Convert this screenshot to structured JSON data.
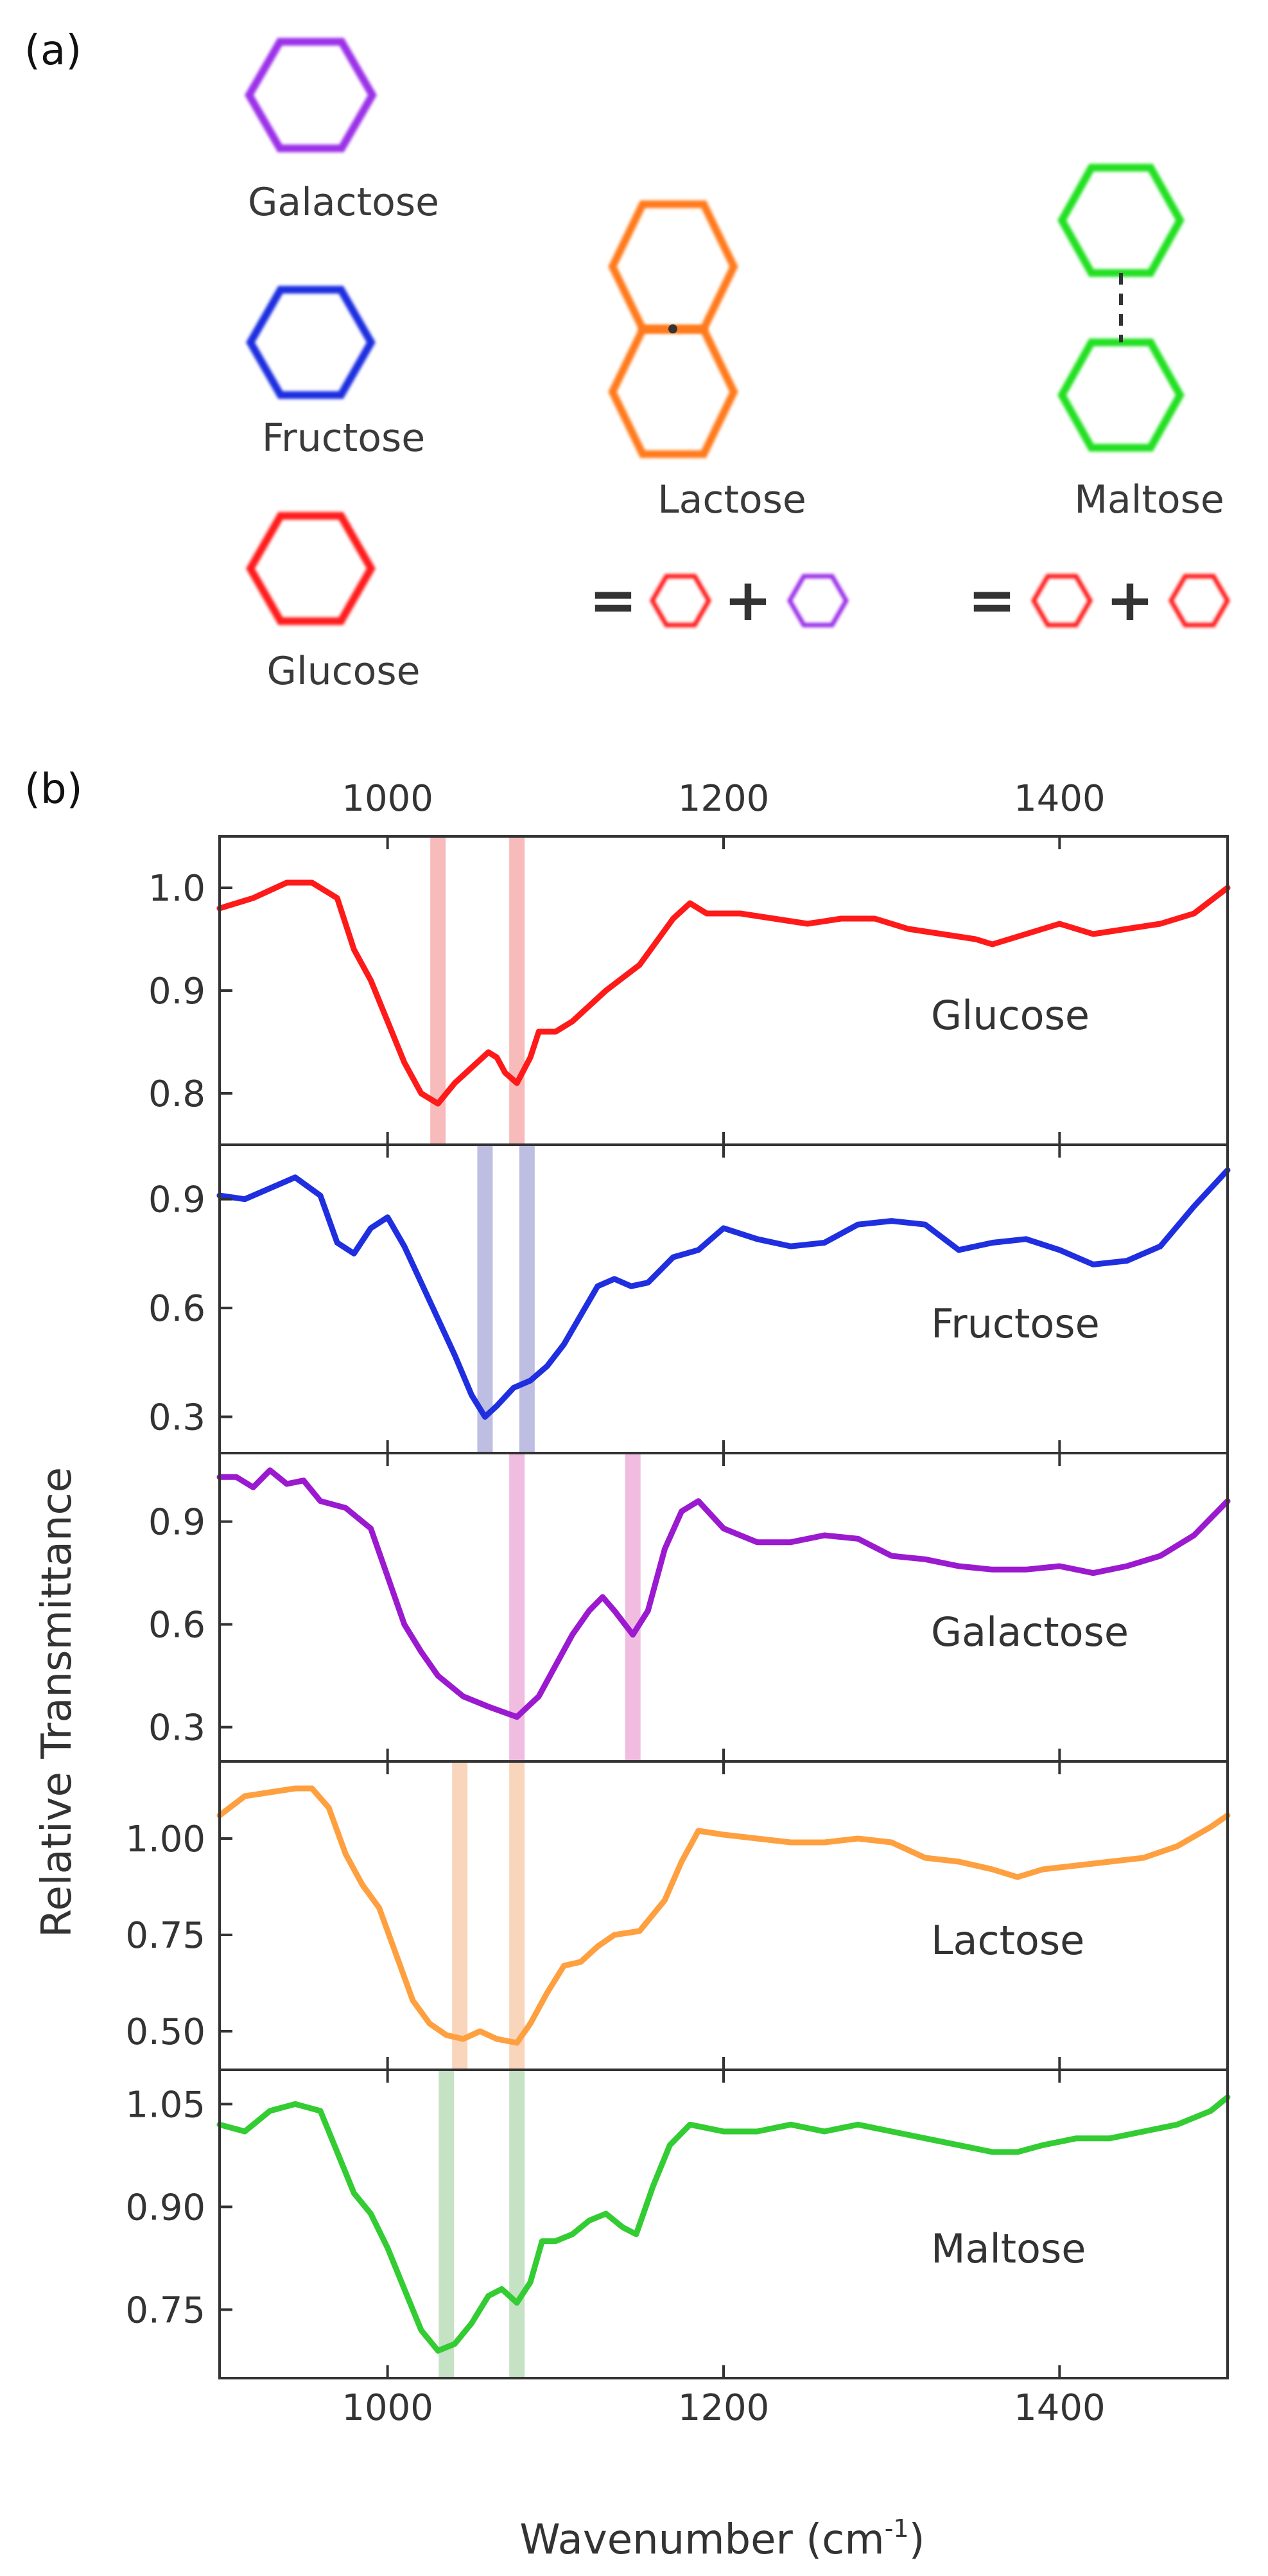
{
  "panel_a": {
    "label": "(a)",
    "molecules": {
      "galactose": {
        "name": "Galactose",
        "color": "#9b30e8"
      },
      "fructose": {
        "name": "Fructose",
        "color": "#1f2fe0"
      },
      "glucose": {
        "name": "Glucose",
        "color": "#ff1a1a"
      },
      "lactose": {
        "name": "Lactose",
        "color": "#ff7a1f"
      },
      "maltose": {
        "name": "Maltose",
        "color": "#22e022"
      }
    },
    "equation_symbols": {
      "equals": "=",
      "plus": "+"
    }
  },
  "panel_b": {
    "label": "(b)"
  },
  "chart_data": {
    "type": "line",
    "xlabel": "Wavenumber (cm",
    "xlabel_superscript": "-1",
    "xlabel_close": ")",
    "ylabel": "Relative Transmittance",
    "xlim": [
      900,
      1500
    ],
    "x_ticks": [
      1000,
      1200,
      1400
    ],
    "x_tick_labels": [
      "1000",
      "1200",
      "1400"
    ],
    "series": [
      {
        "name": "Glucose",
        "color": "#ff1a1a",
        "highlight_color": "#f4a4a4",
        "ylim": [
          0.75,
          1.05
        ],
        "y_ticks": [
          0.8,
          0.9,
          1.0
        ],
        "y_tick_labels": [
          "0.8",
          "0.9",
          "1.0"
        ],
        "highlights": [
          1030,
          1077
        ],
        "x": [
          900,
          920,
          940,
          955,
          970,
          980,
          990,
          1000,
          1010,
          1020,
          1030,
          1040,
          1050,
          1060,
          1065,
          1070,
          1077,
          1085,
          1090,
          1100,
          1110,
          1130,
          1150,
          1170,
          1180,
          1190,
          1210,
          1230,
          1250,
          1270,
          1290,
          1310,
          1330,
          1350,
          1360,
          1380,
          1400,
          1420,
          1440,
          1460,
          1480,
          1500
        ],
        "values": [
          0.98,
          0.99,
          1.005,
          1.005,
          0.99,
          0.94,
          0.91,
          0.87,
          0.83,
          0.8,
          0.79,
          0.81,
          0.825,
          0.84,
          0.835,
          0.82,
          0.81,
          0.835,
          0.86,
          0.86,
          0.87,
          0.9,
          0.925,
          0.97,
          0.985,
          0.975,
          0.975,
          0.97,
          0.965,
          0.97,
          0.97,
          0.96,
          0.955,
          0.95,
          0.945,
          0.955,
          0.965,
          0.955,
          0.96,
          0.965,
          0.975,
          1.0
        ]
      },
      {
        "name": "Fructose",
        "color": "#1f2fe0",
        "highlight_color": "#a8a8d8",
        "ylim": [
          0.2,
          1.05
        ],
        "y_ticks": [
          0.3,
          0.6,
          0.9
        ],
        "y_tick_labels": [
          "0.3",
          "0.6",
          "0.9"
        ],
        "highlights": [
          1058,
          1083
        ],
        "x": [
          900,
          915,
          930,
          945,
          960,
          970,
          980,
          990,
          1000,
          1010,
          1020,
          1030,
          1040,
          1050,
          1058,
          1065,
          1075,
          1085,
          1095,
          1105,
          1115,
          1125,
          1135,
          1145,
          1155,
          1170,
          1185,
          1200,
          1220,
          1240,
          1260,
          1280,
          1300,
          1320,
          1340,
          1360,
          1380,
          1400,
          1420,
          1440,
          1460,
          1480,
          1500
        ],
        "values": [
          0.91,
          0.9,
          0.93,
          0.96,
          0.91,
          0.78,
          0.75,
          0.82,
          0.85,
          0.77,
          0.67,
          0.57,
          0.47,
          0.36,
          0.3,
          0.33,
          0.38,
          0.4,
          0.44,
          0.5,
          0.58,
          0.66,
          0.68,
          0.66,
          0.67,
          0.74,
          0.76,
          0.82,
          0.79,
          0.77,
          0.78,
          0.83,
          0.84,
          0.83,
          0.76,
          0.78,
          0.79,
          0.76,
          0.72,
          0.73,
          0.77,
          0.88,
          0.98
        ]
      },
      {
        "name": "Galactose",
        "color": "#9b1ad0",
        "highlight_color": "#eba6d6",
        "ylim": [
          0.2,
          1.1
        ],
        "y_ticks": [
          0.3,
          0.6,
          0.9
        ],
        "y_tick_labels": [
          "0.3",
          "0.6",
          "0.9"
        ],
        "highlights": [
          1077,
          1146
        ],
        "x": [
          900,
          910,
          920,
          930,
          940,
          950,
          960,
          975,
          990,
          1000,
          1010,
          1020,
          1030,
          1045,
          1060,
          1077,
          1090,
          1100,
          1110,
          1120,
          1128,
          1135,
          1146,
          1155,
          1165,
          1175,
          1185,
          1200,
          1220,
          1240,
          1260,
          1280,
          1300,
          1320,
          1340,
          1360,
          1380,
          1400,
          1420,
          1440,
          1460,
          1480,
          1500
        ],
        "values": [
          1.03,
          1.03,
          1.0,
          1.05,
          1.01,
          1.02,
          0.96,
          0.94,
          0.88,
          0.74,
          0.6,
          0.52,
          0.45,
          0.39,
          0.36,
          0.33,
          0.39,
          0.48,
          0.57,
          0.64,
          0.68,
          0.64,
          0.57,
          0.64,
          0.82,
          0.93,
          0.96,
          0.88,
          0.84,
          0.84,
          0.86,
          0.85,
          0.8,
          0.79,
          0.77,
          0.76,
          0.76,
          0.77,
          0.75,
          0.77,
          0.8,
          0.86,
          0.96
        ]
      },
      {
        "name": "Lactose",
        "color": "#ffa040",
        "highlight_color": "#f7c7a4",
        "ylim": [
          0.4,
          1.2
        ],
        "y_ticks": [
          0.5,
          0.75,
          1.0
        ],
        "y_tick_labels": [
          "0.50",
          "0.75",
          "1.00"
        ],
        "highlights": [
          1043,
          1077
        ],
        "x": [
          900,
          915,
          930,
          945,
          955,
          965,
          975,
          985,
          995,
          1005,
          1015,
          1025,
          1035,
          1045,
          1055,
          1065,
          1077,
          1085,
          1095,
          1105,
          1115,
          1125,
          1135,
          1150,
          1165,
          1175,
          1185,
          1200,
          1220,
          1240,
          1260,
          1280,
          1300,
          1320,
          1340,
          1360,
          1375,
          1390,
          1410,
          1430,
          1450,
          1470,
          1490,
          1500
        ],
        "values": [
          1.06,
          1.11,
          1.12,
          1.13,
          1.13,
          1.08,
          0.96,
          0.88,
          0.82,
          0.7,
          0.58,
          0.52,
          0.49,
          0.48,
          0.5,
          0.48,
          0.47,
          0.52,
          0.6,
          0.67,
          0.68,
          0.72,
          0.75,
          0.76,
          0.84,
          0.94,
          1.02,
          1.01,
          1.0,
          0.99,
          0.99,
          1.0,
          0.99,
          0.95,
          0.94,
          0.92,
          0.9,
          0.92,
          0.93,
          0.94,
          0.95,
          0.98,
          1.03,
          1.06
        ]
      },
      {
        "name": "Maltose",
        "color": "#33cc33",
        "highlight_color": "#b2d8b2",
        "ylim": [
          0.65,
          1.1
        ],
        "y_ticks": [
          0.75,
          0.9,
          1.05
        ],
        "y_tick_labels": [
          "0.75",
          "0.90",
          "1.05"
        ],
        "highlights": [
          1035,
          1077
        ],
        "x": [
          900,
          915,
          930,
          945,
          960,
          970,
          980,
          990,
          1000,
          1010,
          1020,
          1030,
          1040,
          1050,
          1060,
          1068,
          1077,
          1085,
          1092,
          1100,
          1110,
          1120,
          1130,
          1140,
          1148,
          1158,
          1168,
          1180,
          1200,
          1220,
          1240,
          1260,
          1280,
          1300,
          1320,
          1340,
          1360,
          1375,
          1390,
          1410,
          1430,
          1450,
          1470,
          1490,
          1500
        ],
        "values": [
          1.02,
          1.01,
          1.04,
          1.05,
          1.04,
          0.98,
          0.92,
          0.89,
          0.84,
          0.78,
          0.72,
          0.69,
          0.7,
          0.73,
          0.77,
          0.78,
          0.76,
          0.79,
          0.85,
          0.85,
          0.86,
          0.88,
          0.89,
          0.87,
          0.86,
          0.93,
          0.99,
          1.02,
          1.01,
          1.01,
          1.02,
          1.01,
          1.02,
          1.01,
          1.0,
          0.99,
          0.98,
          0.98,
          0.99,
          1.0,
          1.0,
          1.01,
          1.02,
          1.04,
          1.06
        ]
      }
    ]
  }
}
